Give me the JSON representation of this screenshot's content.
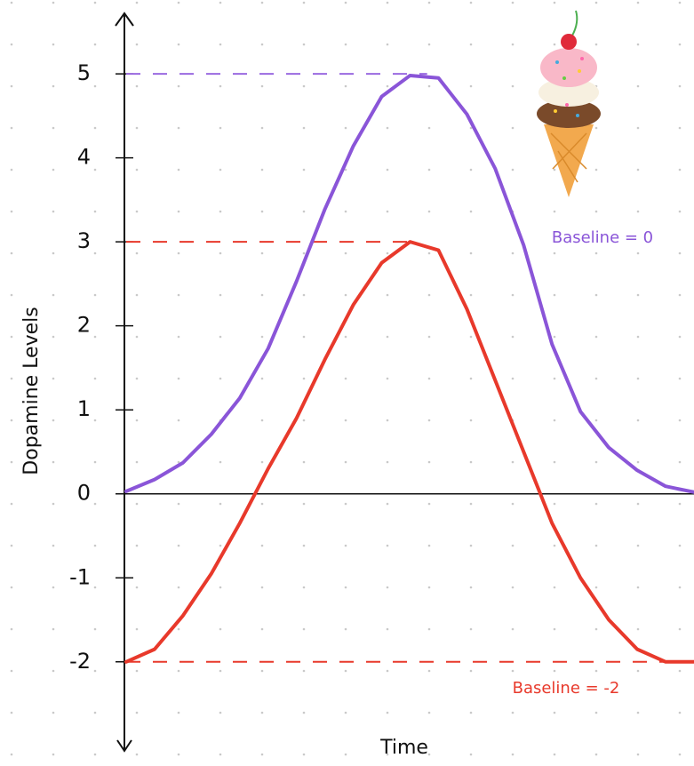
{
  "chart_data": {
    "type": "line",
    "x_label": "Time",
    "y_label": "Dopamine Levels",
    "x": [
      0,
      1,
      2,
      3,
      4,
      5,
      6,
      7,
      8,
      9,
      10,
      11,
      12,
      13,
      14,
      15,
      16,
      17,
      18,
      19,
      20
    ],
    "xlim": [
      0,
      20
    ],
    "ylim": [
      -3.06,
      5.72
    ],
    "yticks": [
      -2,
      -1,
      0,
      1,
      2,
      3,
      4,
      5
    ],
    "series": [
      {
        "name": "Baseline = 0",
        "color": "#8a55d8",
        "values": [
          0.03,
          0.17,
          0.37,
          0.71,
          1.14,
          1.73,
          2.53,
          3.39,
          4.14,
          4.73,
          4.98,
          4.95,
          4.52,
          3.87,
          2.96,
          1.78,
          0.98,
          0.55,
          0.28,
          0.09,
          0.02
        ]
      },
      {
        "name": "Baseline = -2",
        "color": "#e8392b",
        "values": [
          -2.0,
          -1.85,
          -1.45,
          -0.95,
          -0.35,
          0.3,
          0.9,
          1.6,
          2.25,
          2.75,
          3.0,
          2.9,
          2.2,
          1.35,
          0.5,
          -0.35,
          -1.0,
          -1.5,
          -1.85,
          -2.0,
          -2.0
        ]
      }
    ],
    "reference_lines": [
      {
        "y": 5,
        "x": [
          0,
          10.6
        ],
        "color": "#9a6ae0"
      },
      {
        "y": 3,
        "x": [
          0,
          10
        ],
        "color": "#e8392b"
      },
      {
        "y": -2,
        "x": [
          0,
          20
        ],
        "color": "#e8392b"
      }
    ]
  }
}
